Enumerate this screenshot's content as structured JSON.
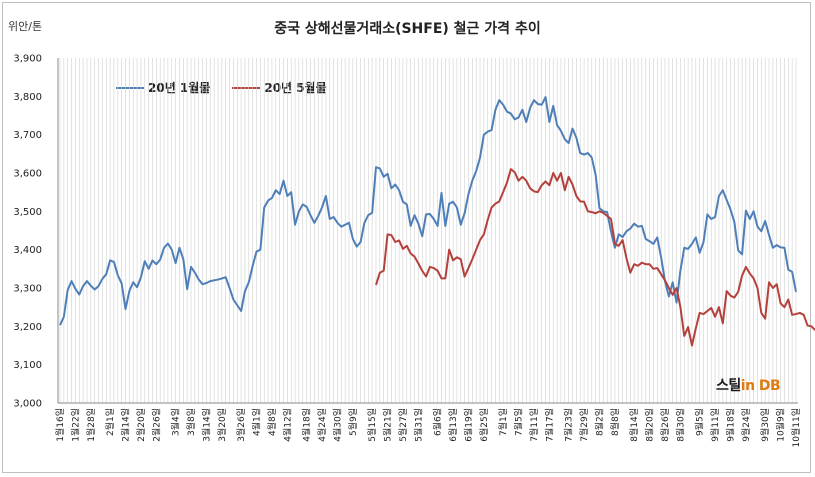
{
  "chart_data": {
    "type": "line",
    "title": "중국 상해선물거래소(SHFE) 철근 가격 추이",
    "unit_label": "위안/톤",
    "ylim": [
      3000,
      3900
    ],
    "yticks": [
      "3,000",
      "3,100",
      "3,200",
      "3,300",
      "3,400",
      "3,500",
      "3,600",
      "3,700",
      "3,800",
      "3,900"
    ],
    "x_tick_labels": [
      "1월16일",
      "1월22일",
      "1월28일",
      "2월1일",
      "2월14일",
      "2월20일",
      "2월26일",
      "3월4일",
      "3월8일",
      "3월14일",
      "3월20일",
      "3월26일",
      "4월1일",
      "4월8일",
      "4월12일",
      "4월18일",
      "4월24일",
      "4월30일",
      "5월9일",
      "5월15일",
      "5월21일",
      "5월27일",
      "5월31일",
      "6월6일",
      "6월13일",
      "6월19일",
      "6월25일",
      "7월1일",
      "7월5일",
      "7월11일",
      "7월17일",
      "7월23일",
      "7월29일",
      "8월2일",
      "8월8일",
      "8월14일",
      "8월20일",
      "8월26일",
      "8월30일",
      "9월5일",
      "9월11일",
      "9월18일",
      "9월24일",
      "9월30일",
      "10월9일",
      "10월11일"
    ],
    "series": [
      {
        "name": "20년 1월물",
        "color": "#4f7fb8",
        "start_index": 0,
        "values": [
          3203,
          3225,
          3295,
          3318,
          3298,
          3283,
          3305,
          3318,
          3306,
          3296,
          3305,
          3324,
          3336,
          3372,
          3368,
          3333,
          3312,
          3245,
          3292,
          3315,
          3302,
          3328,
          3370,
          3350,
          3372,
          3362,
          3374,
          3405,
          3416,
          3400,
          3365,
          3405,
          3375,
          3297,
          3355,
          3340,
          3322,
          3310,
          3313,
          3318,
          3320,
          3322,
          3325,
          3328,
          3300,
          3270,
          3255,
          3240,
          3292,
          3315,
          3358,
          3395,
          3400,
          3510,
          3528,
          3535,
          3555,
          3545,
          3580,
          3540,
          3550,
          3465,
          3500,
          3518,
          3512,
          3490,
          3470,
          3488,
          3510,
          3540,
          3480,
          3485,
          3470,
          3460,
          3465,
          3470,
          3428,
          3408,
          3420,
          3470,
          3490,
          3496,
          3615,
          3612,
          3590,
          3598,
          3560,
          3570,
          3555,
          3525,
          3518,
          3462,
          3490,
          3468,
          3435,
          3492,
          3493,
          3480,
          3462,
          3548,
          3462,
          3520,
          3525,
          3510,
          3465,
          3495,
          3545,
          3580,
          3605,
          3640,
          3700,
          3708,
          3712,
          3765,
          3790,
          3778,
          3760,
          3755,
          3740,
          3745,
          3765,
          3733,
          3770,
          3790,
          3780,
          3778,
          3798,
          3733,
          3775,
          3725,
          3710,
          3688,
          3678,
          3716,
          3692,
          3652,
          3648,
          3652,
          3640,
          3595,
          3508,
          3500,
          3498,
          3447,
          3405,
          3440,
          3433,
          3448,
          3455,
          3468,
          3460,
          3462,
          3428,
          3422,
          3415,
          3432,
          3380,
          3318,
          3278,
          3315,
          3262,
          3345,
          3405,
          3402,
          3415,
          3432,
          3392,
          3420,
          3492,
          3480,
          3485,
          3540,
          3555,
          3530,
          3505,
          3472,
          3398,
          3388,
          3502,
          3480,
          3500,
          3460,
          3448,
          3475,
          3438,
          3405,
          3412,
          3406,
          3405,
          3348,
          3342,
          3290
        ]
      },
      {
        "name": "20년 5월물",
        "color": "#b5413c",
        "start_index": 82,
        "values": [
          3308,
          3340,
          3345,
          3440,
          3438,
          3420,
          3424,
          3402,
          3410,
          3390,
          3382,
          3364,
          3345,
          3330,
          3355,
          3352,
          3345,
          3325,
          3325,
          3400,
          3372,
          3380,
          3375,
          3330,
          3352,
          3375,
          3400,
          3425,
          3440,
          3478,
          3510,
          3520,
          3526,
          3550,
          3575,
          3610,
          3602,
          3580,
          3590,
          3580,
          3560,
          3552,
          3550,
          3568,
          3578,
          3568,
          3600,
          3580,
          3600,
          3555,
          3590,
          3570,
          3540,
          3526,
          3525,
          3500,
          3498,
          3495,
          3500,
          3496,
          3488,
          3480,
          3415,
          3410,
          3425,
          3378,
          3340,
          3362,
          3358,
          3366,
          3362,
          3362,
          3350,
          3352,
          3336,
          3320,
          3300,
          3282,
          3300,
          3250,
          3175,
          3198,
          3150,
          3195,
          3235,
          3232,
          3240,
          3248,
          3225,
          3250,
          3208,
          3292,
          3280,
          3275,
          3290,
          3332,
          3355,
          3338,
          3325,
          3300,
          3235,
          3220,
          3315,
          3300,
          3310,
          3260,
          3250,
          3270,
          3230,
          3232,
          3235,
          3230,
          3202,
          3200,
          3190
        ]
      }
    ],
    "grid": "vertical-dense",
    "legend_position": "top-left"
  },
  "logo": {
    "main": "스틸",
    "in": "in",
    "db": "DB"
  }
}
